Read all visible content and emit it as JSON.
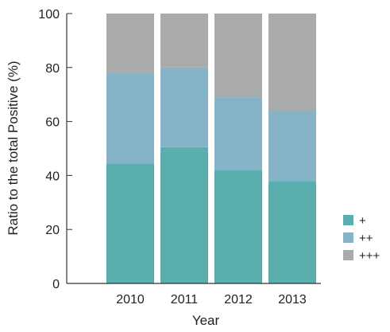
{
  "chart_data": {
    "type": "bar",
    "stacked": true,
    "title": "",
    "xlabel": "Year",
    "ylabel": "Ratio to the total Positive (%)",
    "ylim": [
      0,
      100
    ],
    "yticks": [
      "0",
      "20",
      "40",
      "60",
      "80",
      "100"
    ],
    "grid": false,
    "legend_position": "right-bottom",
    "categories": [
      "2010",
      "2011",
      "2012",
      "2013"
    ],
    "series": [
      {
        "name": "+",
        "color": "#5aaeae",
        "values": [
          44.5,
          50.5,
          42,
          38
        ]
      },
      {
        "name": "++",
        "color": "#87b3c8",
        "values": [
          33.5,
          29.5,
          27,
          26
        ]
      },
      {
        "name": "+++",
        "color": "#a9aaaa",
        "values": [
          22,
          20,
          31,
          36
        ]
      }
    ]
  }
}
